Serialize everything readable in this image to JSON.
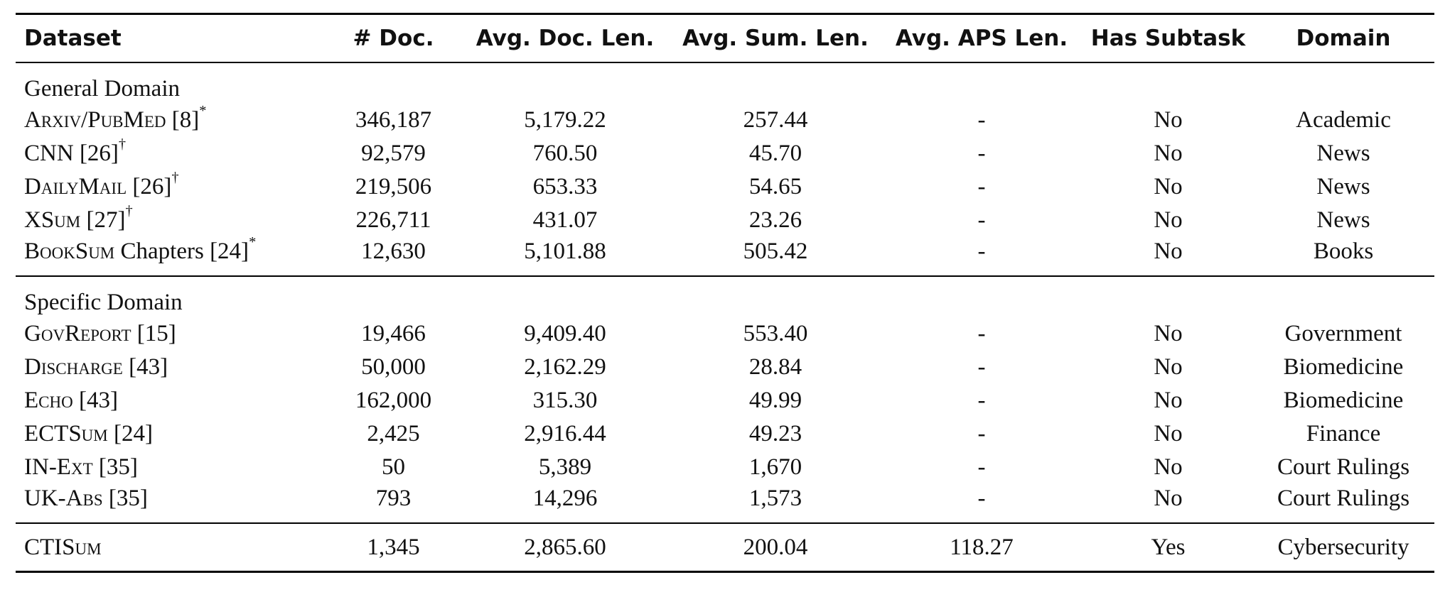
{
  "columns": [
    "Dataset",
    "# Doc.",
    "Avg. Doc. Len.",
    "Avg. Sum. Len.",
    "Avg. APS Len.",
    "Has Subtask",
    "Domain"
  ],
  "sections": [
    {
      "title": "General Domain",
      "rows": [
        {
          "name": "Arxiv/PubMed",
          "ref": " [8]",
          "mark": "*",
          "cells": [
            "346,187",
            "5,179.22",
            "257.44",
            "-",
            "No",
            "Academic"
          ]
        },
        {
          "name": "CNN",
          "ref": " [26]",
          "mark": "†",
          "cells": [
            "92,579",
            "760.50",
            "45.70",
            "-",
            "No",
            "News"
          ]
        },
        {
          "name": "DailyMail",
          "ref": " [26]",
          "mark": "†",
          "cells": [
            "219,506",
            "653.33",
            "54.65",
            "-",
            "No",
            "News"
          ]
        },
        {
          "name": "XSum",
          "ref": " [27]",
          "mark": "†",
          "cells": [
            "226,711",
            "431.07",
            "23.26",
            "-",
            "No",
            "News"
          ]
        },
        {
          "name": "BookSum",
          "ref": " Chapters [24]",
          "mark": "*",
          "cells": [
            "12,630",
            "5,101.88",
            "505.42",
            "-",
            "No",
            "Books"
          ]
        }
      ]
    },
    {
      "title": "Specific Domain",
      "rows": [
        {
          "name": "GovReport",
          "ref": " [15]",
          "mark": "",
          "cells": [
            "19,466",
            "9,409.40",
            "553.40",
            "-",
            "No",
            "Government"
          ]
        },
        {
          "name": "Discharge",
          "ref": " [43]",
          "mark": "",
          "cells": [
            "50,000",
            "2,162.29",
            "28.84",
            "-",
            "No",
            "Biomedicine"
          ]
        },
        {
          "name": "Echo",
          "ref": " [43]",
          "mark": "",
          "cells": [
            "162,000",
            "315.30",
            "49.99",
            "-",
            "No",
            "Biomedicine"
          ]
        },
        {
          "name": "ECTSum",
          "ref": " [24]",
          "mark": "",
          "cells": [
            "2,425",
            "2,916.44",
            "49.23",
            "-",
            "No",
            "Finance"
          ]
        },
        {
          "name": "IN-Ext",
          "ref": " [35]",
          "mark": "",
          "cells": [
            "50",
            "5,389",
            "1,670",
            "-",
            "No",
            "Court Rulings"
          ]
        },
        {
          "name": "UK-Abs",
          "ref": " [35]",
          "mark": "",
          "cells": [
            "793",
            "14,296",
            "1,573",
            "-",
            "No",
            "Court Rulings"
          ]
        }
      ]
    }
  ],
  "final": {
    "name": "CTISum",
    "ref": "",
    "mark": "",
    "cells": [
      "1,345",
      "2,865.60",
      "200.04",
      "118.27",
      "Yes",
      "Cybersecurity"
    ]
  }
}
